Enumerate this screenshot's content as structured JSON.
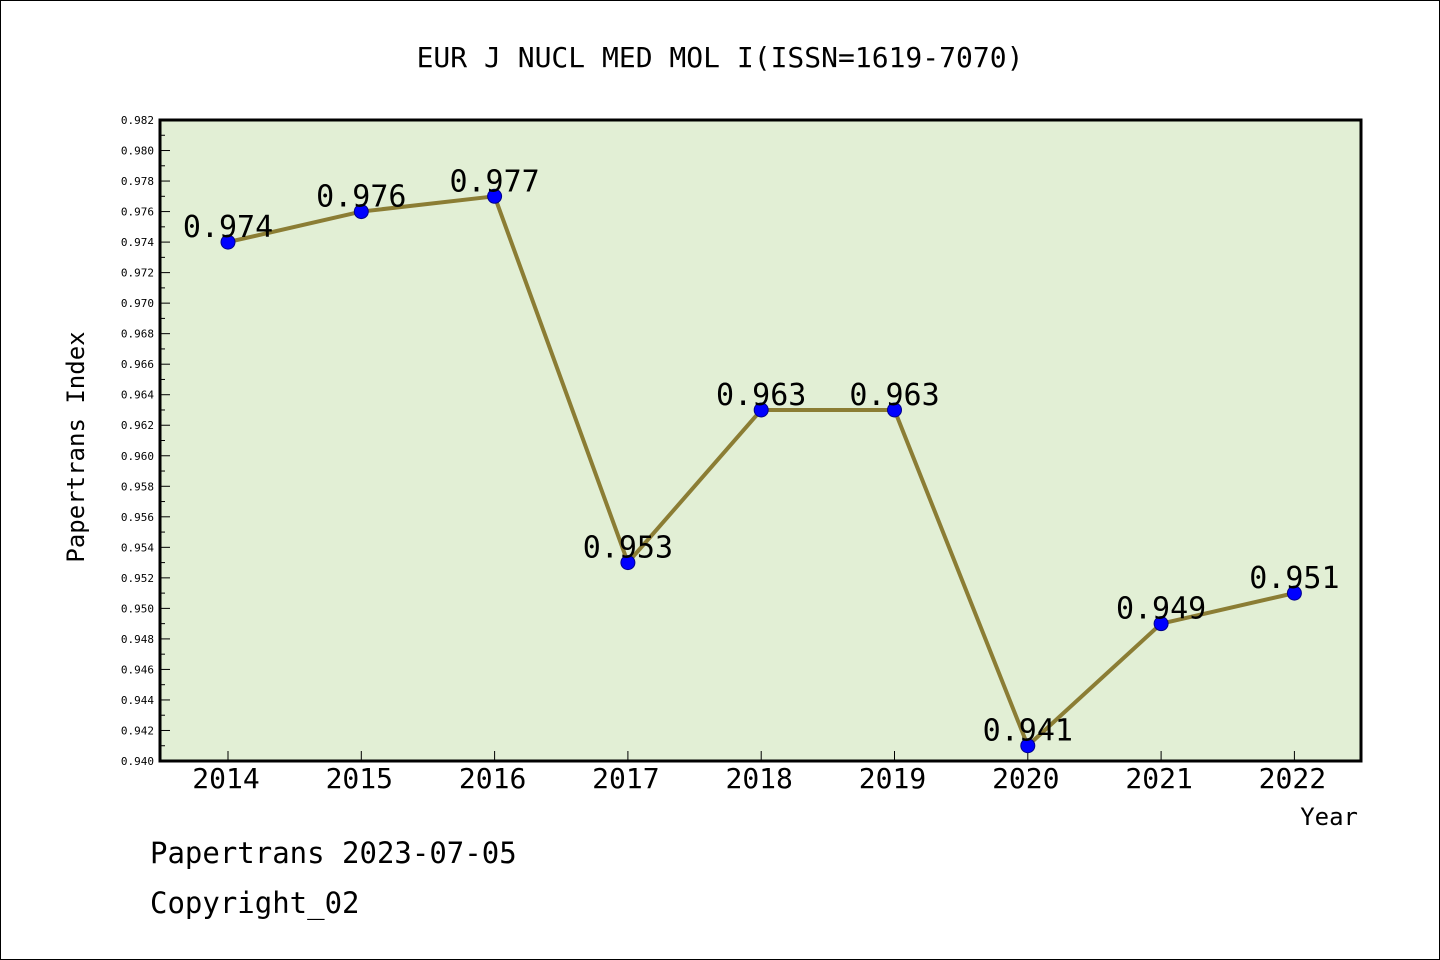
{
  "chart_data": {
    "type": "line",
    "title": "EUR J NUCL MED MOL I(ISSN=1619-7070)",
    "xlabel": "Year",
    "ylabel": "Papertrans Index",
    "categories": [
      "2014",
      "2015",
      "2016",
      "2017",
      "2018",
      "2019",
      "2020",
      "2021",
      "2022"
    ],
    "values": [
      0.974,
      0.976,
      0.977,
      0.953,
      0.963,
      0.963,
      0.941,
      0.949,
      0.951
    ],
    "data_labels": [
      "0.974",
      "0.976",
      "0.977",
      "0.953",
      "0.963",
      "0.963",
      "0.941",
      "0.949",
      "0.951"
    ],
    "ylim": [
      0.94,
      0.982
    ],
    "yticks": [
      "0.940",
      "0.942",
      "0.944",
      "0.946",
      "0.948",
      "0.950",
      "0.952",
      "0.954",
      "0.956",
      "0.958",
      "0.960",
      "0.962",
      "0.964",
      "0.966",
      "0.968",
      "0.970",
      "0.972",
      "0.974",
      "0.976",
      "0.978",
      "0.980",
      "0.982"
    ],
    "grid": false,
    "legend": "none",
    "colors": {
      "plot_background": "#e2efd5",
      "line": "#8b7d34",
      "marker": "#0000ff"
    }
  },
  "footer": {
    "line1": "Papertrans 2023-07-05",
    "line2": "Copyright_02"
  }
}
